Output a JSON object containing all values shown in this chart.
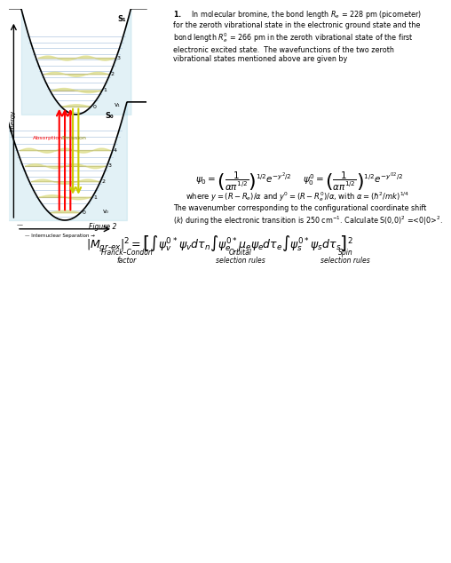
{
  "title_text": "1.    In molecular bromine, the bond length Rₑ = 228 pm (picometer)\nfor the zeroth vibrational state in the electronic ground state and the\nbond length Rₑ’ = 266 pm in the zeroth vibrational state of the first\nelectronic excited state.  The wavefunctions of the two zeroth\nvibrational states mentioned above are given by",
  "equation_box_color": "#ddeeff",
  "body_text": "where y = (R − Rₑ)/α and y’ = (R − Rₑ‘)/α, with α = (ħ²/mk)¼",
  "body_text2": "The wavenumber corresponding to the configurational coordinate shift\n(k) during the electronic transition is 250 cm⁻¹. Calculate S(0,0)² =<0|0>².",
  "figure_label": "Figure 2",
  "s1_label": "S₁",
  "s0_label": "S₀",
  "v1_label": "v₁",
  "v0_label": "v₀",
  "absorption_label": "Absorption",
  "emission_label": "Emission",
  "energy_label": "Energy",
  "internuclear_label": "Internuclear Separation",
  "bg_color": "white",
  "pot_upper_color": "#add8e6",
  "pot_lower_color": "#add8e6",
  "vibrational_color": "#ffff99",
  "arrow_absorption_color": "red",
  "arrow_emission_color": "yellow"
}
